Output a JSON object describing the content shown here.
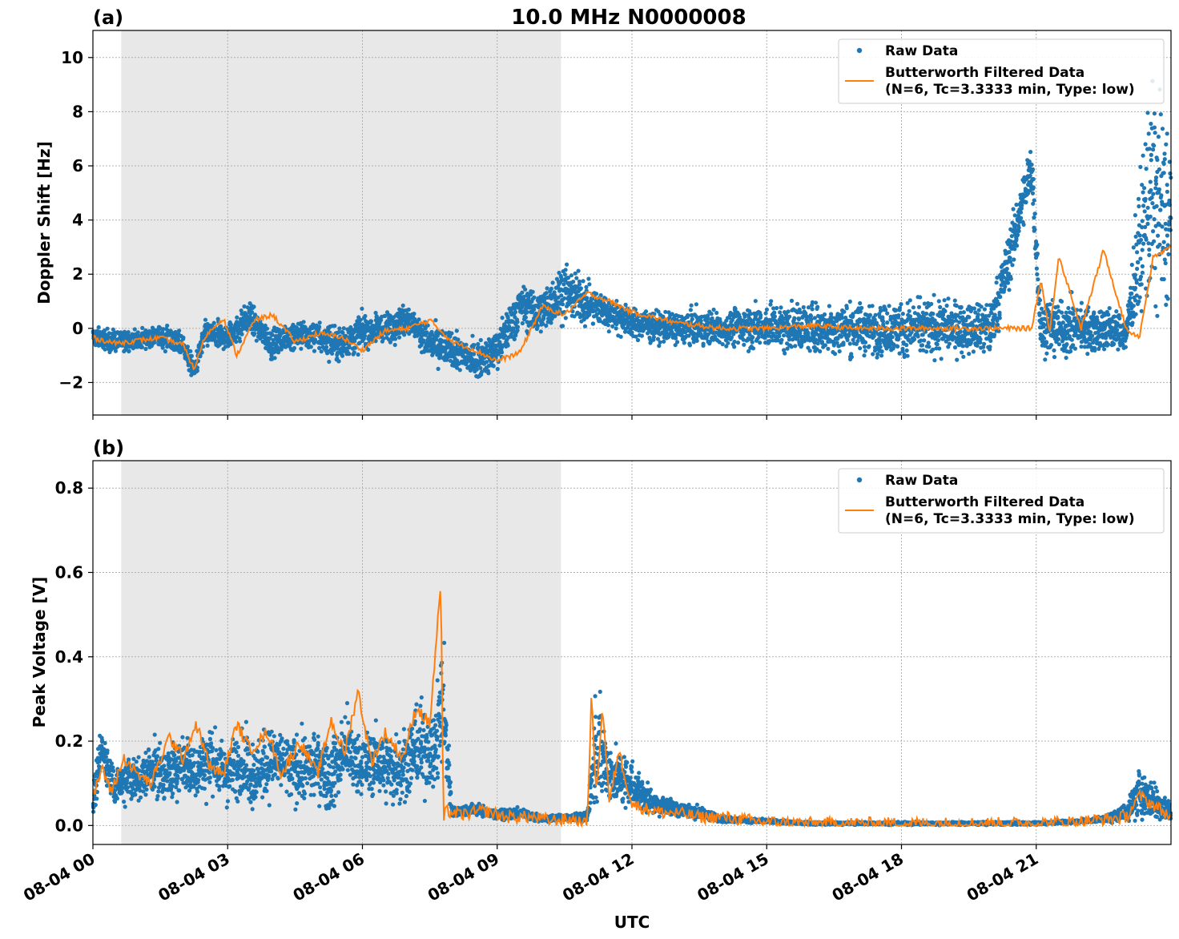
{
  "figure": {
    "title": "10.0 MHz N0000008",
    "xlabel": "UTC",
    "colors": {
      "raw": "#1f77b4",
      "filtered": "#ff7f0e",
      "shade": "#e8e8e8",
      "grid": "#b0b0b0"
    }
  },
  "chart_data": [
    {
      "type": "scatter",
      "panel_label": "(a)",
      "ylabel": "Doppler Shift [Hz]",
      "xlim": [
        0,
        24
      ],
      "ylim": [
        -3.2,
        11.0
      ],
      "yticks": [
        -2,
        0,
        2,
        4,
        6,
        8,
        10
      ],
      "ytick_labels": [
        "−2",
        "0",
        "2",
        "4",
        "6",
        "8",
        "10"
      ],
      "shaded_x_range_hours": [
        0.63,
        10.42
      ],
      "grid": true,
      "legend_placement": "top-right",
      "series": [
        {
          "name": "Raw Data",
          "kind": "points",
          "x_hours": [
            0,
            0.5,
            1,
            1.5,
            2,
            2.25,
            2.5,
            3,
            3.5,
            4,
            4.5,
            5,
            5.5,
            6,
            6.5,
            7,
            7.5,
            8,
            8.5,
            9,
            9.5,
            10,
            10.5,
            11,
            11.5,
            12,
            13,
            14,
            15,
            16,
            17,
            18,
            19,
            20,
            20.9,
            21.1,
            21.5,
            22,
            22.5,
            23,
            23.5,
            24
          ],
          "y": [
            -0.3,
            -0.5,
            -0.4,
            -0.3,
            -0.6,
            -1.6,
            -0.2,
            -0.3,
            0.4,
            -0.6,
            -0.2,
            -0.3,
            -0.6,
            -0.1,
            0.0,
            0.4,
            -0.6,
            -0.8,
            -1.2,
            -0.8,
            0.8,
            0.6,
            1.4,
            0.9,
            0.6,
            0.2,
            0.0,
            0.0,
            0.1,
            0.0,
            0.0,
            0.0,
            0.0,
            0.0,
            6.0,
            0.0,
            0.0,
            0.0,
            0.0,
            -0.2,
            5.0,
            4.0
          ],
          "y_spread": [
            0.35,
            0.35,
            0.35,
            0.35,
            0.4,
            0.4,
            0.4,
            0.45,
            0.5,
            0.45,
            0.5,
            0.55,
            0.6,
            0.55,
            0.5,
            0.5,
            0.6,
            0.6,
            0.6,
            0.7,
            0.8,
            0.8,
            0.9,
            0.7,
            0.6,
            0.5,
            0.55,
            0.6,
            0.75,
            0.8,
            0.85,
            0.9,
            0.9,
            0.9,
            1.0,
            0.9,
            0.9,
            0.9,
            0.8,
            0.5,
            3.5,
            4.0
          ]
        },
        {
          "name": "Butterworth Filtered Data\n(N=6, Tc=3.3333 min, Type: low)",
          "kind": "line",
          "x_hours": [
            0,
            0.5,
            1,
            1.5,
            2,
            2.25,
            2.5,
            2.9,
            3.2,
            3.6,
            4,
            4.5,
            5,
            5.5,
            6,
            6.5,
            7,
            7.5,
            8,
            8.5,
            9,
            9.5,
            10,
            10.5,
            11,
            11.5,
            12,
            13,
            14,
            15,
            16,
            17,
            18,
            19,
            20,
            20.9,
            21.1,
            21.3,
            21.5,
            22,
            22.5,
            23,
            23.05,
            23.3,
            23.6,
            24
          ],
          "y": [
            -0.35,
            -0.55,
            -0.45,
            -0.35,
            -0.6,
            -1.5,
            -0.3,
            0.4,
            -1.0,
            0.3,
            0.5,
            -0.5,
            -0.2,
            -0.3,
            -0.8,
            -0.1,
            0.0,
            0.3,
            -0.5,
            -0.8,
            -1.2,
            -0.9,
            0.8,
            0.5,
            1.3,
            1.0,
            0.6,
            0.2,
            0.0,
            0.0,
            0.1,
            0.0,
            0.0,
            0.0,
            0.0,
            0.0,
            1.8,
            -0.2,
            2.7,
            0.0,
            2.9,
            0.0,
            -0.1,
            -0.3,
            2.6,
            3.0
          ]
        }
      ]
    },
    {
      "type": "scatter",
      "panel_label": "(b)",
      "ylabel": "Peak Voltage [V]",
      "xlim": [
        0,
        24
      ],
      "ylim": [
        -0.045,
        0.865
      ],
      "yticks": [
        0.0,
        0.2,
        0.4,
        0.6,
        0.8
      ],
      "ytick_labels": [
        "0.0",
        "0.2",
        "0.4",
        "0.6",
        "0.8"
      ],
      "xticks_hours": [
        0,
        3,
        6,
        9,
        12,
        15,
        18,
        21
      ],
      "xtick_labels": [
        "08-04 00",
        "08-04 03",
        "08-04 06",
        "08-04 09",
        "08-04 12",
        "08-04 15",
        "08-04 18",
        "08-04 21"
      ],
      "shaded_x_range_hours": [
        0.63,
        10.42
      ],
      "grid": true,
      "legend_placement": "top-right",
      "series": [
        {
          "name": "Raw Data",
          "kind": "points",
          "x_hours": [
            0,
            0.2,
            0.5,
            0.8,
            1,
            1.3,
            1.7,
            2,
            2.3,
            2.6,
            3,
            3.3,
            3.6,
            4,
            4.3,
            4.6,
            5,
            5.3,
            5.6,
            6,
            6.3,
            6.6,
            7,
            7.3,
            7.6,
            7.8,
            8,
            8.5,
            9,
            9.5,
            10,
            10.5,
            11,
            11.2,
            11.5,
            12,
            12.5,
            13,
            13.5,
            14,
            15,
            16,
            17,
            18,
            19,
            20,
            21,
            22,
            22.5,
            23,
            23.3,
            23.6,
            24
          ],
          "y": [
            0.05,
            0.18,
            0.09,
            0.12,
            0.1,
            0.14,
            0.12,
            0.15,
            0.13,
            0.16,
            0.12,
            0.15,
            0.12,
            0.16,
            0.14,
            0.13,
            0.15,
            0.11,
            0.18,
            0.14,
            0.15,
            0.13,
            0.15,
            0.19,
            0.17,
            0.28,
            0.03,
            0.04,
            0.025,
            0.03,
            0.015,
            0.02,
            0.02,
            0.2,
            0.12,
            0.1,
            0.05,
            0.04,
            0.03,
            0.015,
            0.01,
            0.005,
            0.005,
            0.005,
            0.005,
            0.005,
            0.005,
            0.01,
            0.015,
            0.03,
            0.08,
            0.06,
            0.03
          ],
          "y_spread": [
            0.03,
            0.05,
            0.04,
            0.05,
            0.05,
            0.06,
            0.06,
            0.07,
            0.07,
            0.07,
            0.06,
            0.07,
            0.07,
            0.07,
            0.07,
            0.07,
            0.07,
            0.07,
            0.08,
            0.07,
            0.07,
            0.07,
            0.08,
            0.09,
            0.09,
            0.15,
            0.01,
            0.012,
            0.01,
            0.01,
            0.006,
            0.006,
            0.01,
            0.12,
            0.06,
            0.05,
            0.02,
            0.02,
            0.012,
            0.006,
            0.004,
            0.003,
            0.003,
            0.003,
            0.003,
            0.003,
            0.003,
            0.004,
            0.006,
            0.02,
            0.05,
            0.04,
            0.02
          ]
        },
        {
          "name": "Butterworth Filtered Data\n(N=6, Tc=3.3333 min, Type: low)",
          "kind": "line",
          "x_hours": [
            0,
            0.2,
            0.4,
            0.7,
            1,
            1.3,
            1.7,
            2,
            2.3,
            2.6,
            2.9,
            3.2,
            3.5,
            3.9,
            4.2,
            4.6,
            5,
            5.3,
            5.6,
            5.9,
            6.2,
            6.5,
            6.9,
            7.2,
            7.5,
            7.75,
            7.8,
            7.85,
            8.2,
            8.7,
            9.2,
            9.7,
            10.2,
            10.7,
            11,
            11.1,
            11.2,
            11.35,
            11.5,
            11.7,
            12,
            12.3,
            12.7,
            13,
            13.5,
            14,
            15,
            16,
            17,
            18,
            19,
            20,
            21,
            22,
            22.5,
            23,
            23.3,
            23.6,
            24
          ],
          "y": [
            0.06,
            0.14,
            0.08,
            0.16,
            0.12,
            0.1,
            0.21,
            0.16,
            0.24,
            0.14,
            0.12,
            0.24,
            0.18,
            0.22,
            0.12,
            0.2,
            0.12,
            0.25,
            0.17,
            0.32,
            0.15,
            0.22,
            0.16,
            0.28,
            0.24,
            0.58,
            0.0,
            0.035,
            0.025,
            0.035,
            0.02,
            0.02,
            0.012,
            0.015,
            0.0,
            0.31,
            0.08,
            0.28,
            0.05,
            0.18,
            0.05,
            0.04,
            0.03,
            0.03,
            0.02,
            0.02,
            0.008,
            0.005,
            0.005,
            0.005,
            0.005,
            0.005,
            0.005,
            0.01,
            0.015,
            0.02,
            0.07,
            0.05,
            0.02
          ]
        }
      ]
    }
  ]
}
